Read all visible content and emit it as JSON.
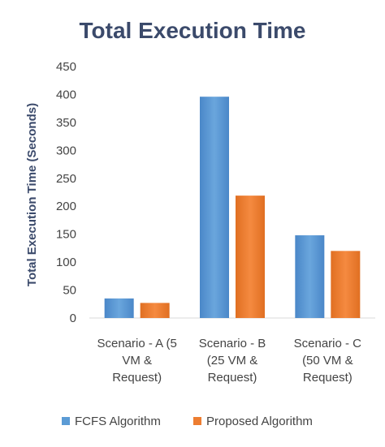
{
  "chart_data": {
    "type": "bar",
    "title": "Total Execution Time",
    "xlabel": "",
    "ylabel": "Total Execution Time (Seconds)",
    "ylim": [
      0,
      450
    ],
    "yticks": [
      0,
      50,
      100,
      150,
      200,
      250,
      300,
      350,
      400,
      450
    ],
    "grid": false,
    "legend_position": "bottom",
    "categories": [
      [
        "Scenario - A (5",
        "VM &",
        "Request)"
      ],
      [
        "Scenario - B",
        "(25 VM &",
        "Request)"
      ],
      [
        "Scenario - C",
        "(50 VM &",
        "Request)"
      ]
    ],
    "series": [
      {
        "name": "FCFS Algorithm",
        "color": "#5b9bd5",
        "values": [
          35,
          396,
          148
        ]
      },
      {
        "name": "Proposed Algorithm",
        "color": "#ed7d31",
        "values": [
          27,
          219,
          120
        ]
      }
    ]
  }
}
